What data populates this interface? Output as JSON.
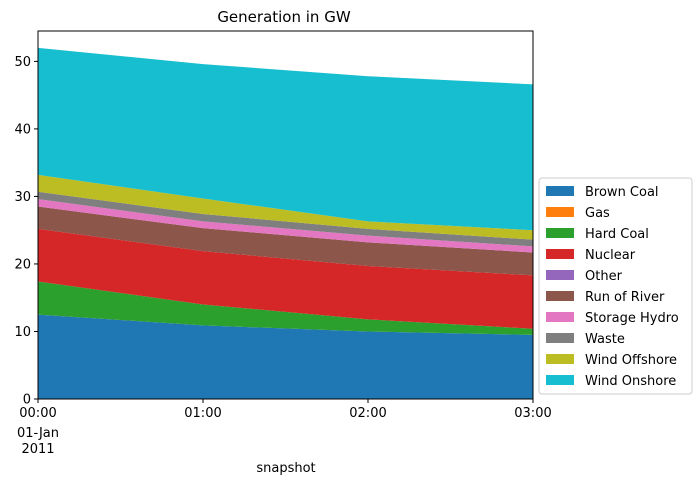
{
  "chart_data": {
    "type": "area",
    "stacked": true,
    "title": "Generation in GW",
    "xlabel": "snapshot",
    "ylabel": "",
    "x": [
      "00:00",
      "01:00",
      "02:00",
      "03:00"
    ],
    "x_date_label": [
      "01-Jan",
      "2011"
    ],
    "ylim": [
      0,
      54.5
    ],
    "yticks": [
      0,
      10,
      20,
      30,
      40,
      50
    ],
    "grid": false,
    "legend_position": "right",
    "series": [
      {
        "name": "Brown Coal",
        "color": "#1f77b4",
        "values": [
          12.5,
          10.9,
          10.0,
          9.5
        ]
      },
      {
        "name": "Gas",
        "color": "#ff7f0e",
        "values": [
          0.0,
          0.0,
          0.0,
          0.0
        ]
      },
      {
        "name": "Hard Coal",
        "color": "#2ca02c",
        "values": [
          4.9,
          3.1,
          1.8,
          0.9
        ]
      },
      {
        "name": "Nuclear",
        "color": "#d62728",
        "values": [
          7.8,
          7.9,
          7.9,
          7.9
        ]
      },
      {
        "name": "Other",
        "color": "#9467bd",
        "values": [
          0.0,
          0.0,
          0.0,
          0.0
        ]
      },
      {
        "name": "Run of River",
        "color": "#8c564b",
        "values": [
          3.3,
          3.4,
          3.5,
          3.4
        ]
      },
      {
        "name": "Storage Hydro",
        "color": "#e377c2",
        "values": [
          1.1,
          1.0,
          1.0,
          0.9
        ]
      },
      {
        "name": "Waste",
        "color": "#7f7f7f",
        "values": [
          1.1,
          1.1,
          1.0,
          1.0
        ]
      },
      {
        "name": "Wind Offshore",
        "color": "#bcbd22",
        "values": [
          2.5,
          2.3,
          1.1,
          1.4
        ]
      },
      {
        "name": "Wind Onshore",
        "color": "#17becf",
        "values": [
          18.8,
          19.9,
          21.5,
          21.6
        ]
      }
    ]
  }
}
